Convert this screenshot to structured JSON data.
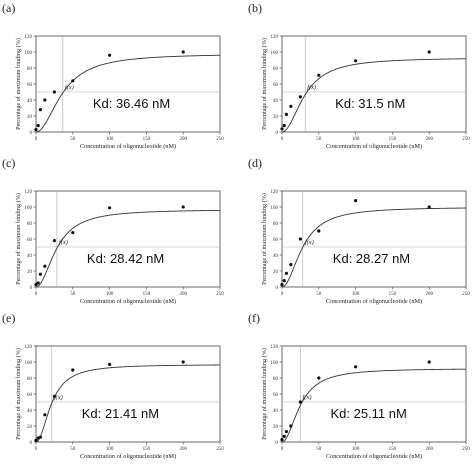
{
  "figure": {
    "panels": [
      "(a)",
      "(b)",
      "(c)",
      "(d)",
      "(e)",
      "(f)"
    ]
  },
  "chart_data": [
    {
      "type": "scatter",
      "panel_label": "(a)",
      "annotation": "Kd: 36.46 nM",
      "curve_label": "f(x)",
      "kd": 36.46,
      "plateau": 98,
      "x": [
        0,
        3,
        6,
        12,
        25,
        50,
        100,
        200
      ],
      "y": [
        3,
        8,
        28,
        40,
        50,
        64,
        96,
        100
      ],
      "xlabel": "Concentration of oligonucleotide (nM)",
      "ylabel": "Percentage of maximum binding (%)",
      "xlim": [
        0,
        250
      ],
      "ylim": [
        0,
        120
      ],
      "xticks": [
        0,
        50,
        100,
        150,
        200,
        250
      ],
      "yticks": [
        0,
        20,
        40,
        60,
        80,
        100,
        120
      ],
      "reference_line_y": 50
    },
    {
      "type": "scatter",
      "panel_label": "(b)",
      "annotation": "Kd: 31.5 nM",
      "curve_label": "f(x)",
      "kd": 31.5,
      "plateau": 93,
      "x": [
        0,
        3,
        6,
        12,
        25,
        50,
        100,
        200
      ],
      "y": [
        4,
        8,
        22,
        32,
        44,
        71,
        89,
        100
      ],
      "xlabel": "Concentration of oligonucleotide (nM)",
      "ylabel": "Percentage of maximum binding (%)",
      "xlim": [
        0,
        250
      ],
      "ylim": [
        0,
        120
      ],
      "xticks": [
        0,
        50,
        100,
        150,
        200,
        250
      ],
      "yticks": [
        0,
        20,
        40,
        60,
        80,
        100,
        120
      ],
      "reference_line_y": 50
    },
    {
      "type": "scatter",
      "panel_label": "(c)",
      "annotation": "Kd: 28.42 nM",
      "curve_label": "f(x)",
      "kd": 28.42,
      "plateau": 97,
      "x": [
        0,
        3,
        6,
        12,
        25,
        50,
        100,
        200
      ],
      "y": [
        3,
        5,
        16,
        26,
        58,
        68,
        99,
        100
      ],
      "xlabel": "Concentration of oligonucleotide (nM)",
      "ylabel": "Percentage of maximum binding (%)",
      "xlim": [
        0,
        250
      ],
      "ylim": [
        0,
        120
      ],
      "xticks": [
        0,
        50,
        100,
        150,
        200,
        250
      ],
      "yticks": [
        0,
        20,
        40,
        60,
        80,
        100,
        120
      ],
      "reference_line_y": 50
    },
    {
      "type": "scatter",
      "panel_label": "(d)",
      "annotation": "Kd: 28.27 nM",
      "curve_label": "f(x)",
      "kd": 28.27,
      "plateau": 100,
      "x": [
        0,
        3,
        6,
        12,
        25,
        50,
        100,
        200
      ],
      "y": [
        3,
        8,
        17,
        28,
        60,
        70,
        108,
        100
      ],
      "xlabel": "Concentration of oligonucleotide (nM)",
      "ylabel": "Percentage of maximum binding (%)",
      "xlim": [
        0,
        250
      ],
      "ylim": [
        0,
        120
      ],
      "xticks": [
        0,
        50,
        100,
        150,
        200,
        250
      ],
      "yticks": [
        0,
        20,
        40,
        60,
        80,
        100,
        120
      ],
      "reference_line_y": 50
    },
    {
      "type": "scatter",
      "panel_label": "(e)",
      "annotation": "Kd: 21.41 nM",
      "curve_label": "f(x)",
      "kd": 21.41,
      "plateau": 97,
      "x": [
        0,
        3,
        6,
        12,
        25,
        50,
        100,
        200
      ],
      "y": [
        2,
        5,
        6,
        34,
        57,
        90,
        97,
        100
      ],
      "xlabel": "Concentration of oligonucleotide (nM)",
      "ylabel": "Percentage of maximum binding (%)",
      "xlim": [
        0,
        250
      ],
      "ylim": [
        0,
        120
      ],
      "xticks": [
        0,
        50,
        100,
        150,
        200,
        250
      ],
      "yticks": [
        0,
        20,
        40,
        60,
        80,
        100,
        120
      ],
      "reference_line_y": 50
    },
    {
      "type": "scatter",
      "panel_label": "(f)",
      "annotation": "Kd: 25.11 nM",
      "curve_label": "f(x)",
      "kd": 25.11,
      "plateau": 92,
      "x": [
        0,
        3,
        6,
        12,
        25,
        50,
        100,
        200
      ],
      "y": [
        3,
        7,
        13,
        20,
        50,
        80,
        94,
        100
      ],
      "xlabel": "Concentration of oligonucleotide (nM)",
      "ylabel": "Percentage of maximum binding (%)",
      "xlim": [
        0,
        250
      ],
      "ylim": [
        0,
        120
      ],
      "xticks": [
        0,
        50,
        100,
        150,
        200,
        250
      ],
      "yticks": [
        0,
        20,
        40,
        60,
        80,
        100,
        120
      ],
      "reference_line_y": 50
    }
  ]
}
